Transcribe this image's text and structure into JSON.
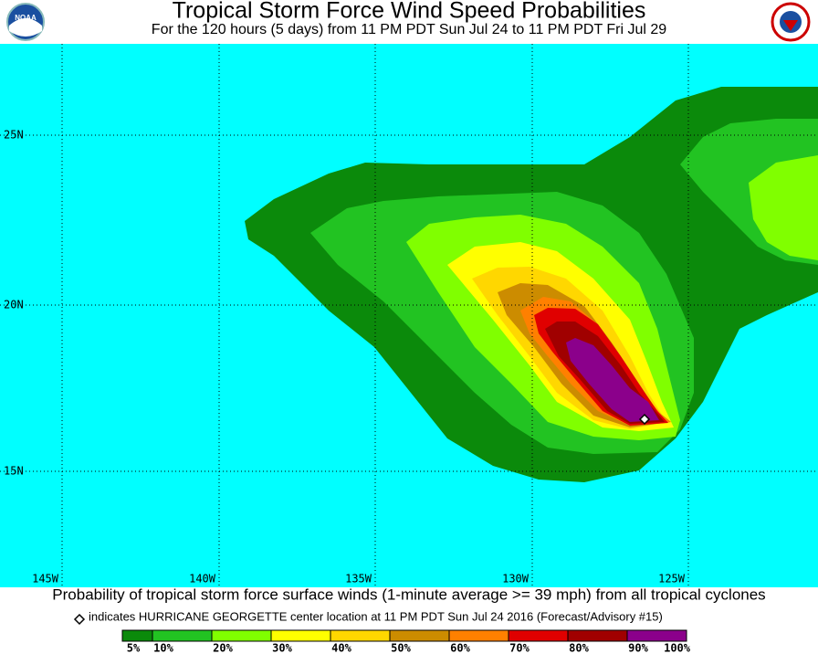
{
  "header": {
    "title": "Tropical Storm Force Wind Speed Probabilities",
    "subtitle": "For the 120 hours (5 days) from 11 PM PDT Sun Jul 24 to 11 PM PDT Fri Jul 29",
    "left_logo": "NOAA"
  },
  "map": {
    "lat_labels": [
      "25N",
      "20N",
      "15N"
    ],
    "lon_labels": [
      "145W",
      "140W",
      "135W",
      "130W",
      "125W"
    ]
  },
  "caption": "Probability of tropical storm force surface winds (1-minute average >= 39 mph) from all tropical cyclones",
  "note": "indicates HURRICANE GEORGETTE center location at 11 PM PDT Sun Jul 24 2016 (Forecast/Advisory #15)",
  "legend": {
    "labels": [
      "5%",
      "10%",
      "20%",
      "30%",
      "40%",
      "50%",
      "60%",
      "70%",
      "80%",
      "90%",
      "100%"
    ],
    "colors": [
      "#0b8a0b",
      "#22c322",
      "#80ff00",
      "#ffff00",
      "#ffd700",
      "#cc8c00",
      "#ff8000",
      "#e00000",
      "#a00000",
      "#8b008b"
    ]
  }
}
